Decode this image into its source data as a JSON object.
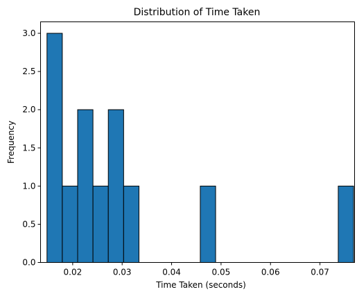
{
  "chart_data": {
    "type": "bar",
    "title": "Distribution of Time Taken",
    "xlabel": "Time Taken (seconds)",
    "ylabel": "Frequency",
    "xlim": [
      0.0135,
      0.077
    ],
    "ylim": [
      0,
      3.15
    ],
    "bin_width": 0.0031,
    "bins": [
      {
        "x0": 0.0148,
        "x1": 0.0179,
        "count": 3
      },
      {
        "x0": 0.0179,
        "x1": 0.021,
        "count": 1
      },
      {
        "x0": 0.021,
        "x1": 0.0241,
        "count": 2
      },
      {
        "x0": 0.0241,
        "x1": 0.0272,
        "count": 1
      },
      {
        "x0": 0.0272,
        "x1": 0.0303,
        "count": 2
      },
      {
        "x0": 0.0303,
        "x1": 0.0334,
        "count": 1
      },
      {
        "x0": 0.0458,
        "x1": 0.0489,
        "count": 1
      },
      {
        "x0": 0.0737,
        "x1": 0.0768,
        "count": 1
      }
    ],
    "xticks": [
      0.02,
      0.03,
      0.04,
      0.05,
      0.06,
      0.07
    ],
    "xtick_labels": [
      "0.02",
      "0.03",
      "0.04",
      "0.05",
      "0.06",
      "0.07"
    ],
    "yticks": [
      0.0,
      0.5,
      1.0,
      1.5,
      2.0,
      2.5,
      3.0
    ],
    "ytick_labels": [
      "0.0",
      "0.5",
      "1.0",
      "1.5",
      "2.0",
      "2.5",
      "3.0"
    ],
    "grid": false,
    "legend": "none",
    "bar_color": "#1f77b4",
    "edge_color": "#000000"
  }
}
